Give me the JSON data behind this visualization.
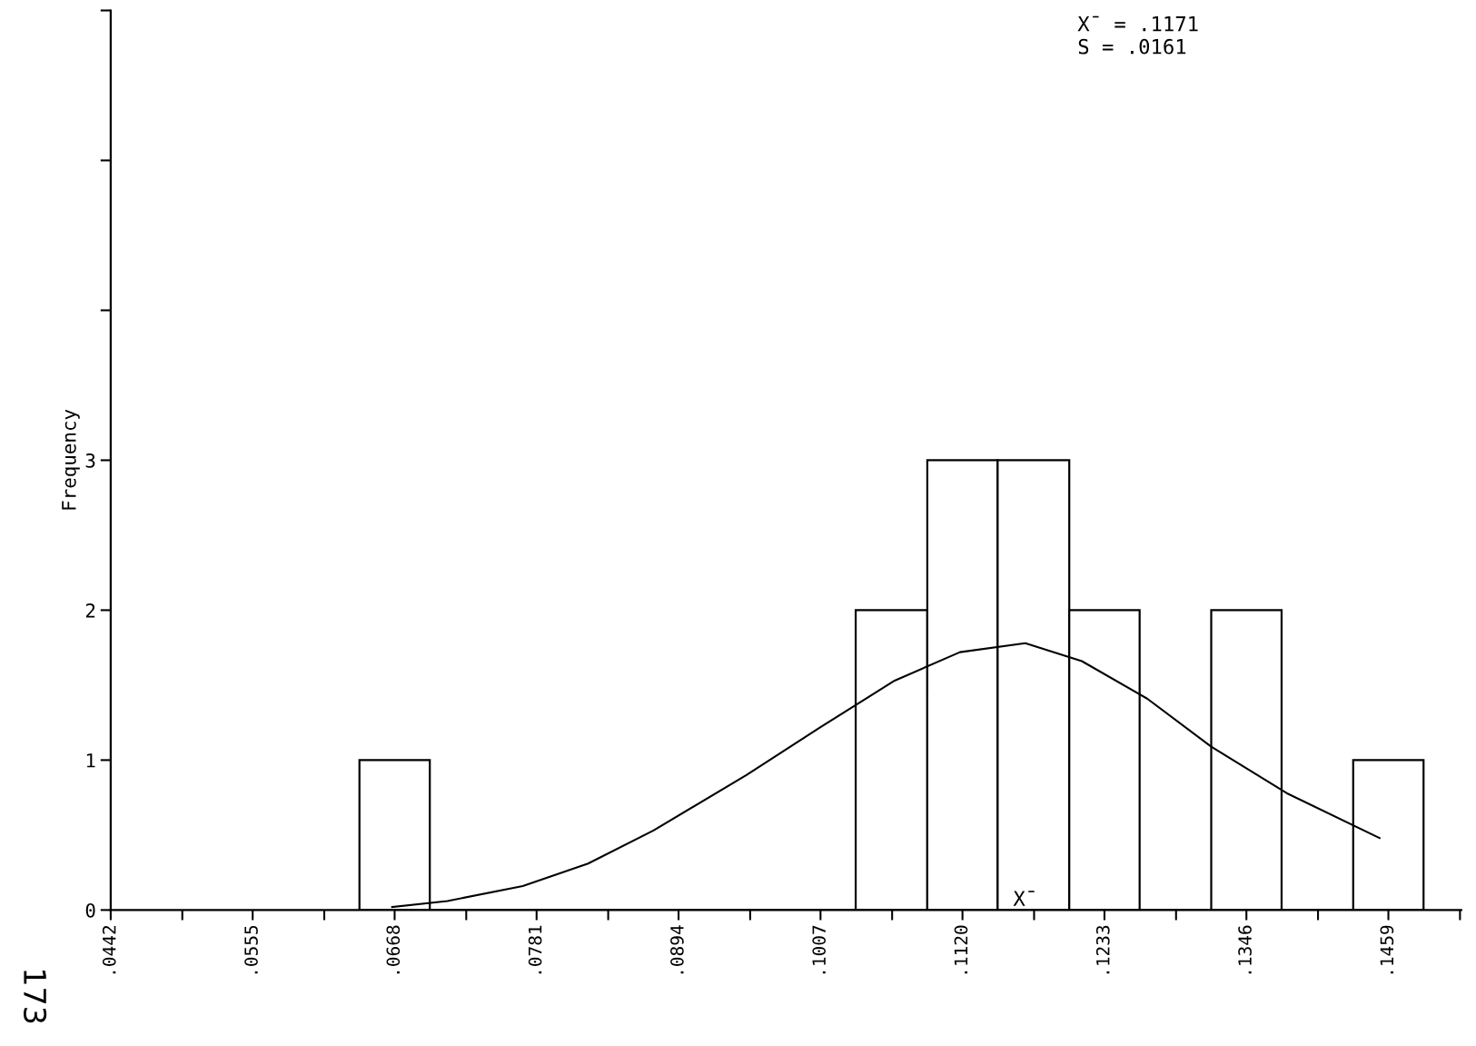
{
  "chart_data": {
    "type": "histogram",
    "ylabel": "Frequency",
    "bins": [
      0.064,
      0.0696,
      0.1035,
      0.1092,
      0.1148,
      0.1205,
      0.1261,
      0.1318,
      0.1374,
      0.1431,
      0.1487
    ],
    "values": [
      1,
      0,
      2,
      3,
      3,
      2,
      0,
      2,
      0,
      1
    ],
    "color": "#ffffff",
    "series": [
      {
        "type": "line",
        "color": "#000000",
        "x": [
          0.0666,
          0.071,
          0.077,
          0.0822,
          0.0874,
          0.0948,
          0.1007,
          0.1066,
          0.1118,
          0.117,
          0.1215,
          0.1267,
          0.1318,
          0.1378,
          0.1452
        ],
        "values": [
          0.02,
          0.06,
          0.16,
          0.31,
          0.53,
          0.9,
          1.22,
          1.53,
          1.72,
          1.78,
          1.66,
          1.41,
          1.09,
          0.78,
          0.48
        ]
      }
    ],
    "xlim": [
      0.0442,
      0.1517
    ],
    "xticks": [
      {
        "value": 0.0442,
        "label": ".0442"
      },
      {
        "value": 0.0499,
        "label": null
      },
      {
        "value": 0.0555,
        "label": ".0555"
      },
      {
        "value": 0.0612,
        "label": null
      },
      {
        "value": 0.0668,
        "label": ".0668"
      },
      {
        "value": 0.0725,
        "label": null
      },
      {
        "value": 0.0781,
        "label": ".0781"
      },
      {
        "value": 0.0838,
        "label": null
      },
      {
        "value": 0.0894,
        "label": ".0894"
      },
      {
        "value": 0.0951,
        "label": null
      },
      {
        "value": 0.1007,
        "label": ".1007"
      },
      {
        "value": 0.1064,
        "label": null
      },
      {
        "value": 0.112,
        "label": ".1120"
      },
      {
        "value": 0.1177,
        "label": null
      },
      {
        "value": 0.1233,
        "label": ".1233"
      },
      {
        "value": 0.129,
        "label": null
      },
      {
        "value": 0.1346,
        "label": ".1346"
      },
      {
        "value": 0.1403,
        "label": null
      },
      {
        "value": 0.1459,
        "label": ".1459"
      },
      {
        "value": 0.1516,
        "label": null
      }
    ],
    "ylim": [
      0,
      6
    ],
    "yticks": [
      0,
      1,
      2,
      3,
      {
        "value": 4,
        "label": null
      },
      {
        "value": 5,
        "label": null
      },
      {
        "value": 6,
        "label": null
      }
    ],
    "grid": false,
    "annotations": [
      "X̄ = .1171\nS = .0161",
      {
        "text": "X̄",
        "x": 0.117,
        "y": 0
      },
      "173"
    ]
  }
}
